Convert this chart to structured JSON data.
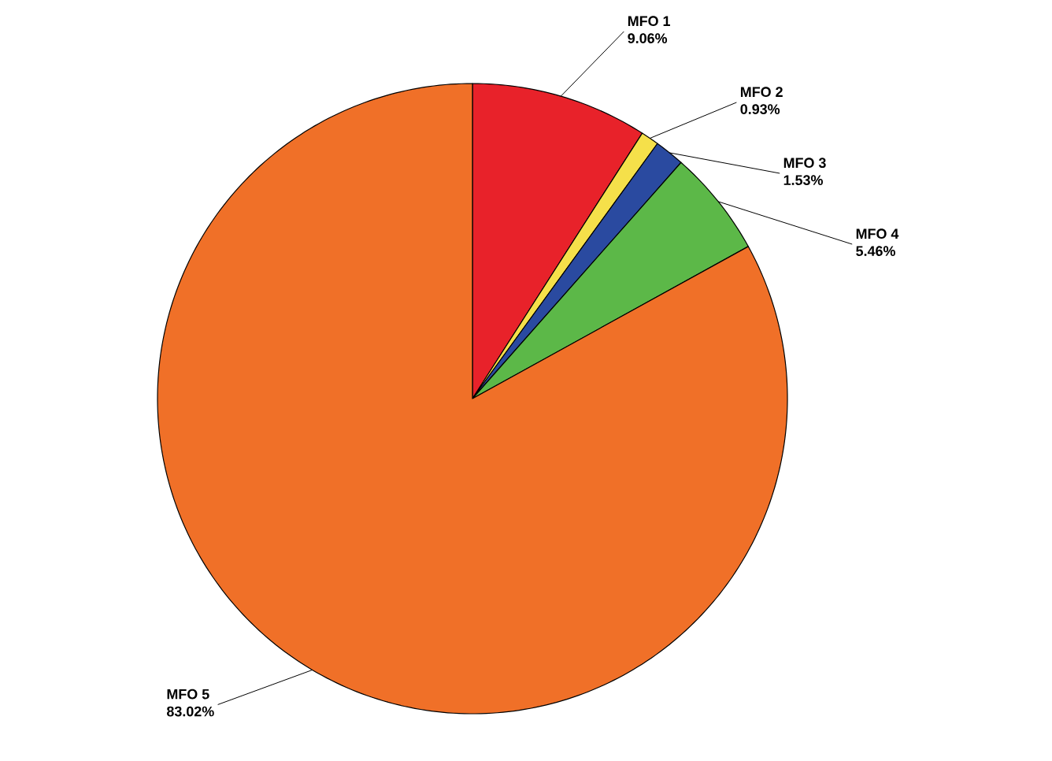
{
  "chart_data": {
    "type": "pie",
    "categories": [
      "MFO 1",
      "MFO 2",
      "MFO 3",
      "MFO 4",
      "MFO 5"
    ],
    "values": [
      9.06,
      0.93,
      1.53,
      5.46,
      83.02
    ],
    "value_labels": [
      "9.06%",
      "0.93%",
      "1.53%",
      "5.46%",
      "83.02%"
    ],
    "colors": [
      "#e8222a",
      "#f5e04a",
      "#2a4aa0",
      "#5cb848",
      "#f07028"
    ]
  }
}
